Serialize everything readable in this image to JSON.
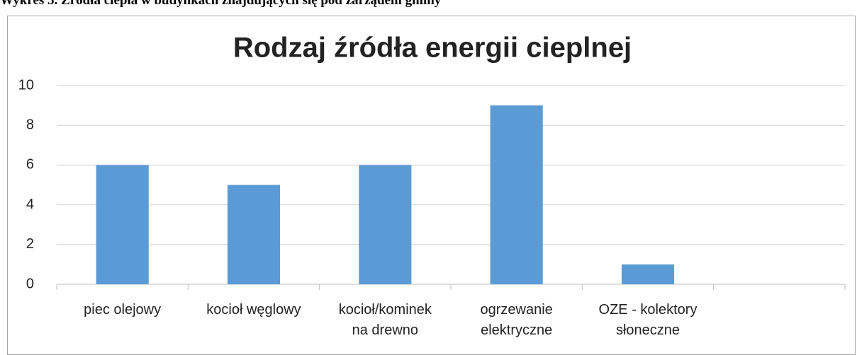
{
  "caption": "Wykres 5. Źródła ciepła w budynkach znajdujących się pod zarządem gminy",
  "chart_data": {
    "type": "bar",
    "title": "Rodzaj źródła energii cieplnej",
    "categories": [
      "piec olejowy",
      "kocioł węglowy",
      "kocioł/kominek na drewno",
      "ogrzewanie elektryczne",
      "OZE - kolektory słoneczne",
      null
    ],
    "values": [
      6,
      5,
      6,
      9,
      1,
      null
    ],
    "color": "#5b9bd5",
    "ylim": [
      0,
      10
    ],
    "yticks": [
      0,
      2,
      4,
      6,
      8,
      10
    ],
    "grid": true
  }
}
